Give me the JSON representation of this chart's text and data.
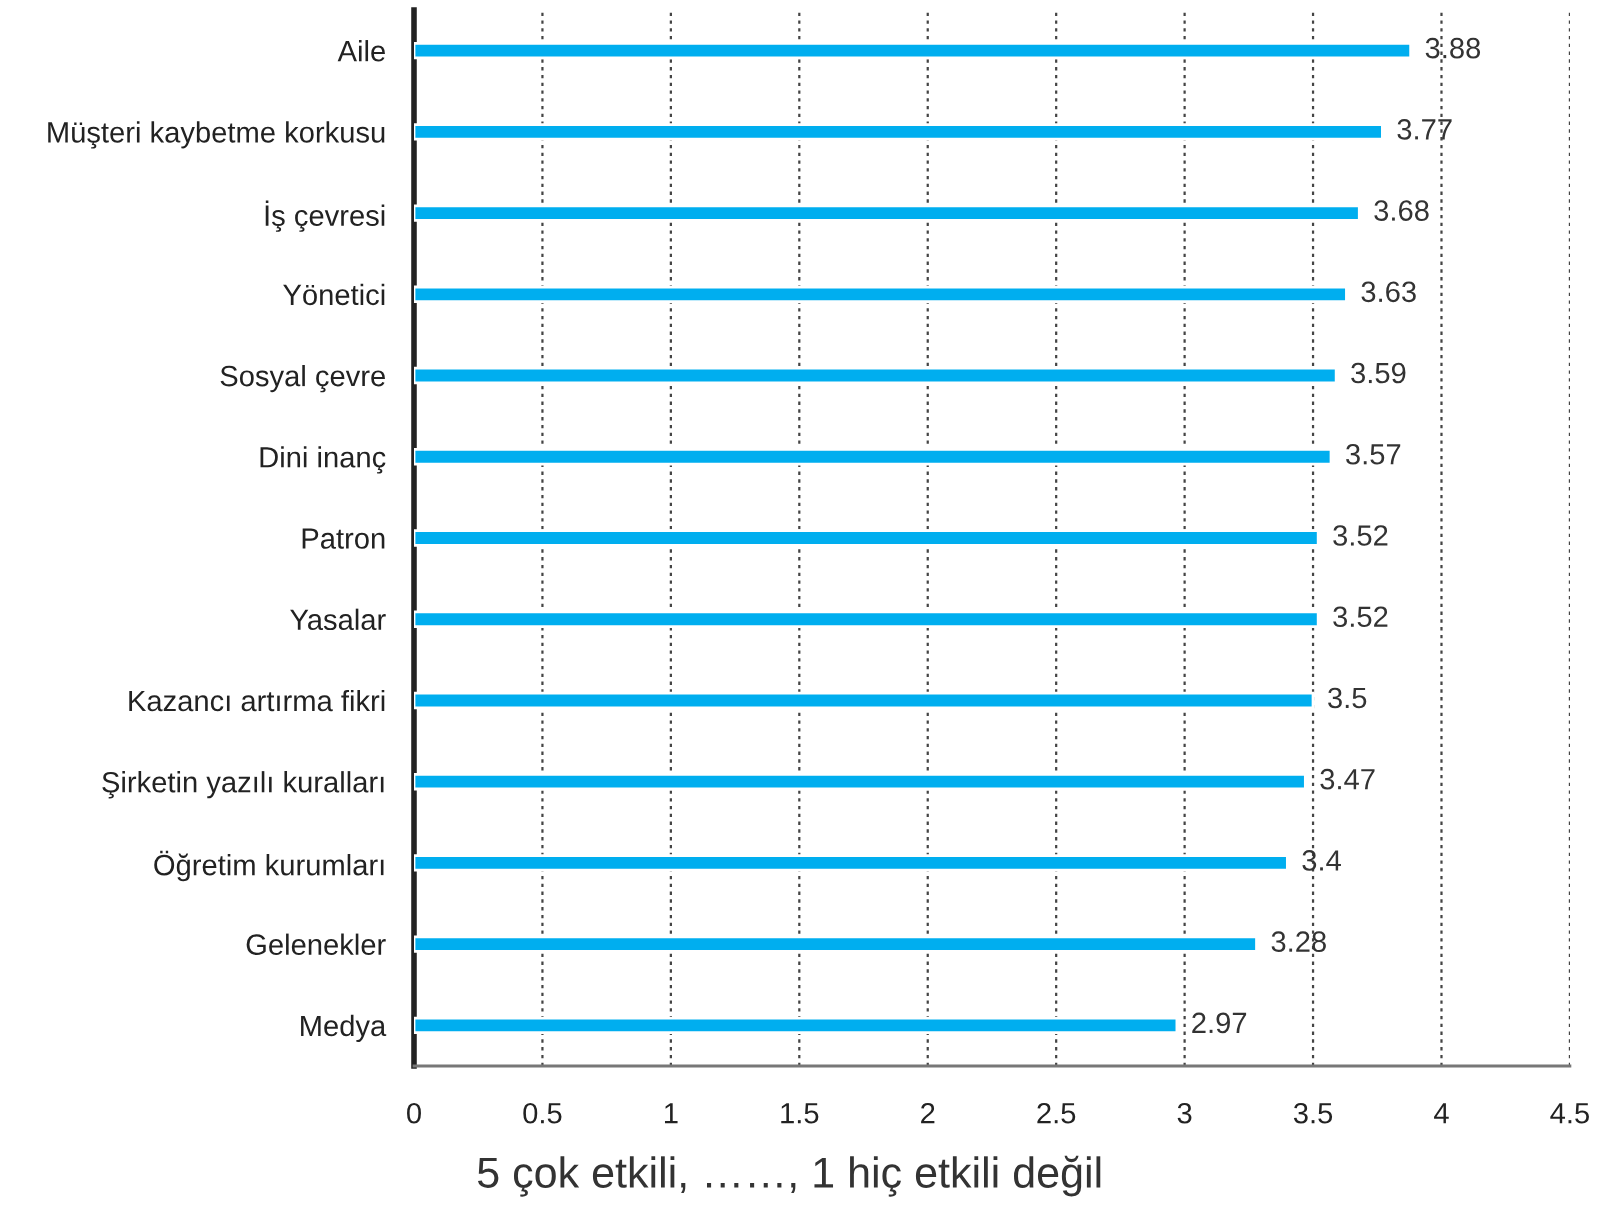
{
  "chart_data": {
    "type": "bar",
    "orientation": "horizontal",
    "categories": [
      "Aile",
      "Müşteri kaybetme korkusu",
      "İş çevresi",
      "Yönetici",
      "Sosyal çevre",
      "Dini inanç",
      "Patron",
      "Yasalar",
      "Kazancı artırma fikri",
      "Şirketin yazılı kuralları",
      "Öğretim kurumları",
      "Gelenekler",
      "Medya"
    ],
    "values": [
      3.88,
      3.77,
      3.68,
      3.63,
      3.59,
      3.57,
      3.52,
      3.52,
      3.5,
      3.47,
      3.4,
      3.28,
      2.97
    ],
    "color": "#00aeef",
    "xlim": [
      0,
      4.5
    ],
    "xticks": [
      0,
      0.5,
      1,
      1.5,
      2,
      2.5,
      3,
      3.5,
      4,
      4.5
    ],
    "xlabel": "5 çok etkili, ……, 1 hiç etkili değil",
    "grid": "x",
    "data_labels": true
  }
}
